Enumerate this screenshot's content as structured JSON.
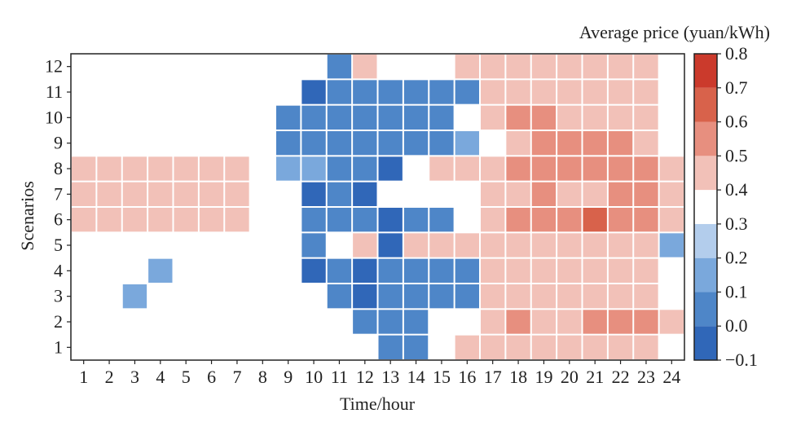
{
  "chart_data": {
    "type": "heatmap",
    "title": "",
    "xlabel": "Time/hour",
    "ylabel": "Scenarios",
    "colorbar_label": "Average price (yuan/kWh)",
    "x": [
      1,
      2,
      3,
      4,
      5,
      6,
      7,
      8,
      9,
      10,
      11,
      12,
      13,
      14,
      15,
      16,
      17,
      18,
      19,
      20,
      21,
      22,
      23,
      24
    ],
    "y": [
      1,
      2,
      3,
      4,
      5,
      6,
      7,
      8,
      9,
      10,
      11,
      12
    ],
    "x_tick_labels": [
      "1",
      "2",
      "3",
      "4",
      "5",
      "6",
      "7",
      "8",
      "9",
      "10",
      "11",
      "12",
      "13",
      "14",
      "15",
      "16",
      "17",
      "18",
      "19",
      "20",
      "21",
      "22",
      "23",
      "24"
    ],
    "y_tick_labels": [
      "1",
      "2",
      "3",
      "4",
      "5",
      "6",
      "7",
      "8",
      "9",
      "10",
      "11",
      "12"
    ],
    "color_range": [
      -0.1,
      0.8
    ],
    "colorbar_ticks": [
      "0.8",
      "0.7",
      "0.6",
      "0.5",
      "0.4",
      "0.3",
      "0.2",
      "0.1",
      "0.0",
      "−0.1"
    ],
    "colorbar_tick_values": [
      0.8,
      0.7,
      0.6,
      0.5,
      0.4,
      0.3,
      0.2,
      0.1,
      0.0,
      -0.1
    ],
    "colorbar_bins": [
      {
        "from": -0.1,
        "to": 0.0,
        "color": "#3067b8"
      },
      {
        "from": 0.0,
        "to": 0.1,
        "color": "#4e86c8"
      },
      {
        "from": 0.1,
        "to": 0.2,
        "color": "#7aa8dc"
      },
      {
        "from": 0.2,
        "to": 0.3,
        "color": "#b3cdec"
      },
      {
        "from": 0.3,
        "to": 0.4,
        "color": "#ffffff"
      },
      {
        "from": 0.4,
        "to": 0.5,
        "color": "#f2c1b8"
      },
      {
        "from": 0.5,
        "to": 0.6,
        "color": "#e78f7f"
      },
      {
        "from": 0.6,
        "to": 0.7,
        "color": "#d8624b"
      },
      {
        "from": 0.7,
        "to": 0.8,
        "color": "#cb3a2c"
      }
    ],
    "values_note": "rows indexed by scenario 1..12, columns by hour 1..24; null = blank (0.3-0.4 bin)",
    "values": [
      [
        null,
        null,
        null,
        null,
        null,
        null,
        null,
        null,
        null,
        null,
        null,
        null,
        0.05,
        0.05,
        null,
        0.45,
        0.45,
        0.45,
        0.45,
        0.45,
        0.45,
        0.45,
        0.45,
        null
      ],
      [
        null,
        null,
        null,
        null,
        null,
        null,
        null,
        null,
        null,
        null,
        null,
        0.05,
        0.05,
        0.05,
        null,
        null,
        0.45,
        0.55,
        0.45,
        0.45,
        0.55,
        0.55,
        0.55,
        0.45
      ],
      [
        null,
        null,
        0.15,
        null,
        null,
        null,
        null,
        null,
        null,
        null,
        0.05,
        -0.05,
        0.05,
        0.05,
        0.05,
        0.05,
        0.45,
        0.45,
        0.45,
        0.45,
        0.45,
        0.45,
        0.45,
        null
      ],
      [
        null,
        null,
        null,
        0.15,
        null,
        null,
        null,
        null,
        null,
        -0.05,
        0.05,
        -0.05,
        0.05,
        0.05,
        0.05,
        0.05,
        0.45,
        0.45,
        0.45,
        0.45,
        0.45,
        0.45,
        0.45,
        null
      ],
      [
        null,
        null,
        null,
        null,
        null,
        null,
        null,
        null,
        null,
        0.05,
        null,
        0.45,
        -0.05,
        0.45,
        0.45,
        0.45,
        0.45,
        0.45,
        0.45,
        0.45,
        0.45,
        0.45,
        0.45,
        0.15
      ],
      [
        0.45,
        0.45,
        0.45,
        0.45,
        0.45,
        0.45,
        0.45,
        null,
        null,
        0.05,
        0.05,
        0.05,
        -0.05,
        0.05,
        0.05,
        null,
        0.45,
        0.55,
        0.55,
        0.55,
        0.65,
        0.55,
        0.55,
        0.45
      ],
      [
        0.45,
        0.45,
        0.45,
        0.45,
        0.45,
        0.45,
        0.45,
        null,
        null,
        -0.05,
        0.05,
        -0.05,
        null,
        null,
        null,
        null,
        0.45,
        0.45,
        0.55,
        0.45,
        0.45,
        0.55,
        0.55,
        0.45
      ],
      [
        0.45,
        0.45,
        0.45,
        0.45,
        0.45,
        0.45,
        0.45,
        null,
        0.15,
        0.15,
        0.05,
        0.05,
        -0.05,
        null,
        0.45,
        0.45,
        0.45,
        0.55,
        0.55,
        0.55,
        0.55,
        0.55,
        0.55,
        0.45
      ],
      [
        null,
        null,
        null,
        null,
        null,
        null,
        null,
        null,
        0.05,
        0.05,
        0.05,
        0.05,
        0.05,
        0.05,
        0.05,
        0.15,
        null,
        0.45,
        0.55,
        0.55,
        0.55,
        0.55,
        0.45,
        null
      ],
      [
        null,
        null,
        null,
        null,
        null,
        null,
        null,
        null,
        0.05,
        0.05,
        0.05,
        0.05,
        0.05,
        0.05,
        0.05,
        null,
        0.45,
        0.55,
        0.55,
        0.45,
        0.45,
        0.45,
        0.45,
        null
      ],
      [
        null,
        null,
        null,
        null,
        null,
        null,
        null,
        null,
        null,
        -0.05,
        0.05,
        0.05,
        0.05,
        0.05,
        0.05,
        0.05,
        0.45,
        0.45,
        0.45,
        0.45,
        0.45,
        0.45,
        0.45,
        null
      ],
      [
        null,
        null,
        null,
        null,
        null,
        null,
        null,
        null,
        null,
        null,
        0.05,
        0.45,
        null,
        null,
        null,
        0.45,
        0.45,
        0.45,
        0.45,
        0.45,
        0.45,
        0.45,
        0.45,
        null
      ]
    ],
    "grid": true,
    "legend": "colorbar-right"
  }
}
